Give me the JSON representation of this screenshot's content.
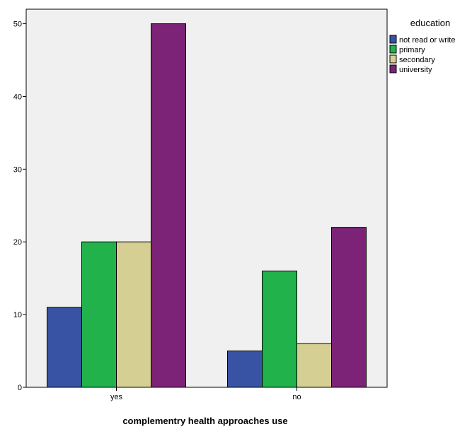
{
  "chart_data": {
    "type": "bar",
    "title": "",
    "xlabel": "complementry health approaches use",
    "ylabel": "",
    "categories": [
      "yes",
      "no"
    ],
    "series": [
      {
        "name": "not read or write",
        "color": "#3953a4",
        "values": [
          11,
          5
        ]
      },
      {
        "name": "primary",
        "color": "#21b24b",
        "values": [
          20,
          16
        ]
      },
      {
        "name": "secondary",
        "color": "#d6cf93",
        "values": [
          20,
          6
        ]
      },
      {
        "name": "university",
        "color": "#7c2377",
        "values": [
          50,
          22
        ]
      }
    ],
    "ylim": [
      0,
      52
    ],
    "yticks": [
      0,
      10,
      20,
      30,
      40,
      50
    ],
    "legend": {
      "title": "education",
      "placement": "right"
    },
    "grid": false,
    "plot_background": "#f0f0f0"
  }
}
